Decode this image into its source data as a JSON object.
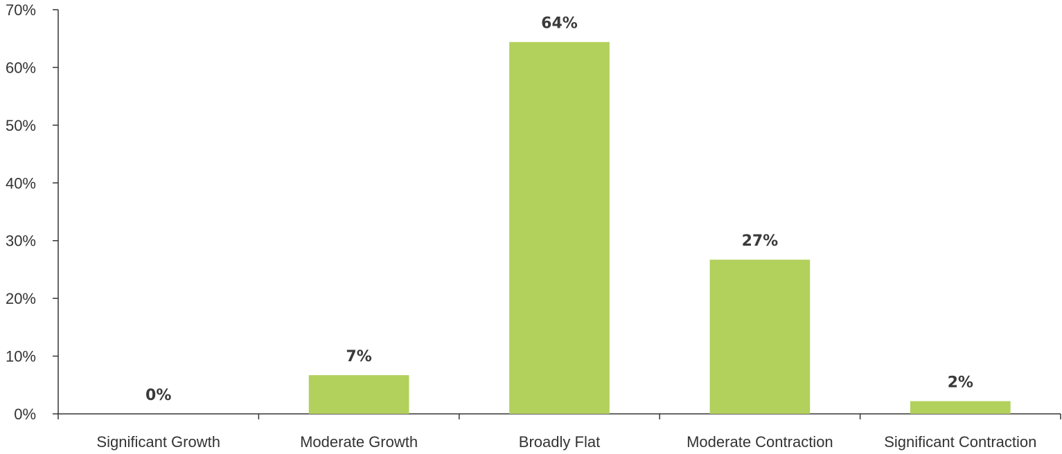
{
  "chart_data": {
    "type": "bar",
    "categories": [
      "Significant Growth",
      "Moderate Growth",
      "Broadly Flat",
      "Moderate Contraction",
      "Significant Contraction"
    ],
    "values": [
      0,
      6.7,
      64.4,
      26.7,
      2.2
    ],
    "data_labels": [
      "0%",
      "7%",
      "64%",
      "27%",
      "2%"
    ],
    "ylim": [
      0,
      70
    ],
    "y_ticks": [
      0,
      10,
      20,
      30,
      40,
      50,
      60,
      70
    ],
    "y_tick_labels": [
      "0%",
      "10%",
      "20%",
      "30%",
      "40%",
      "50%",
      "60%",
      "70%"
    ],
    "grid": false,
    "legend": "none",
    "bar_color": "#b2d05c"
  }
}
